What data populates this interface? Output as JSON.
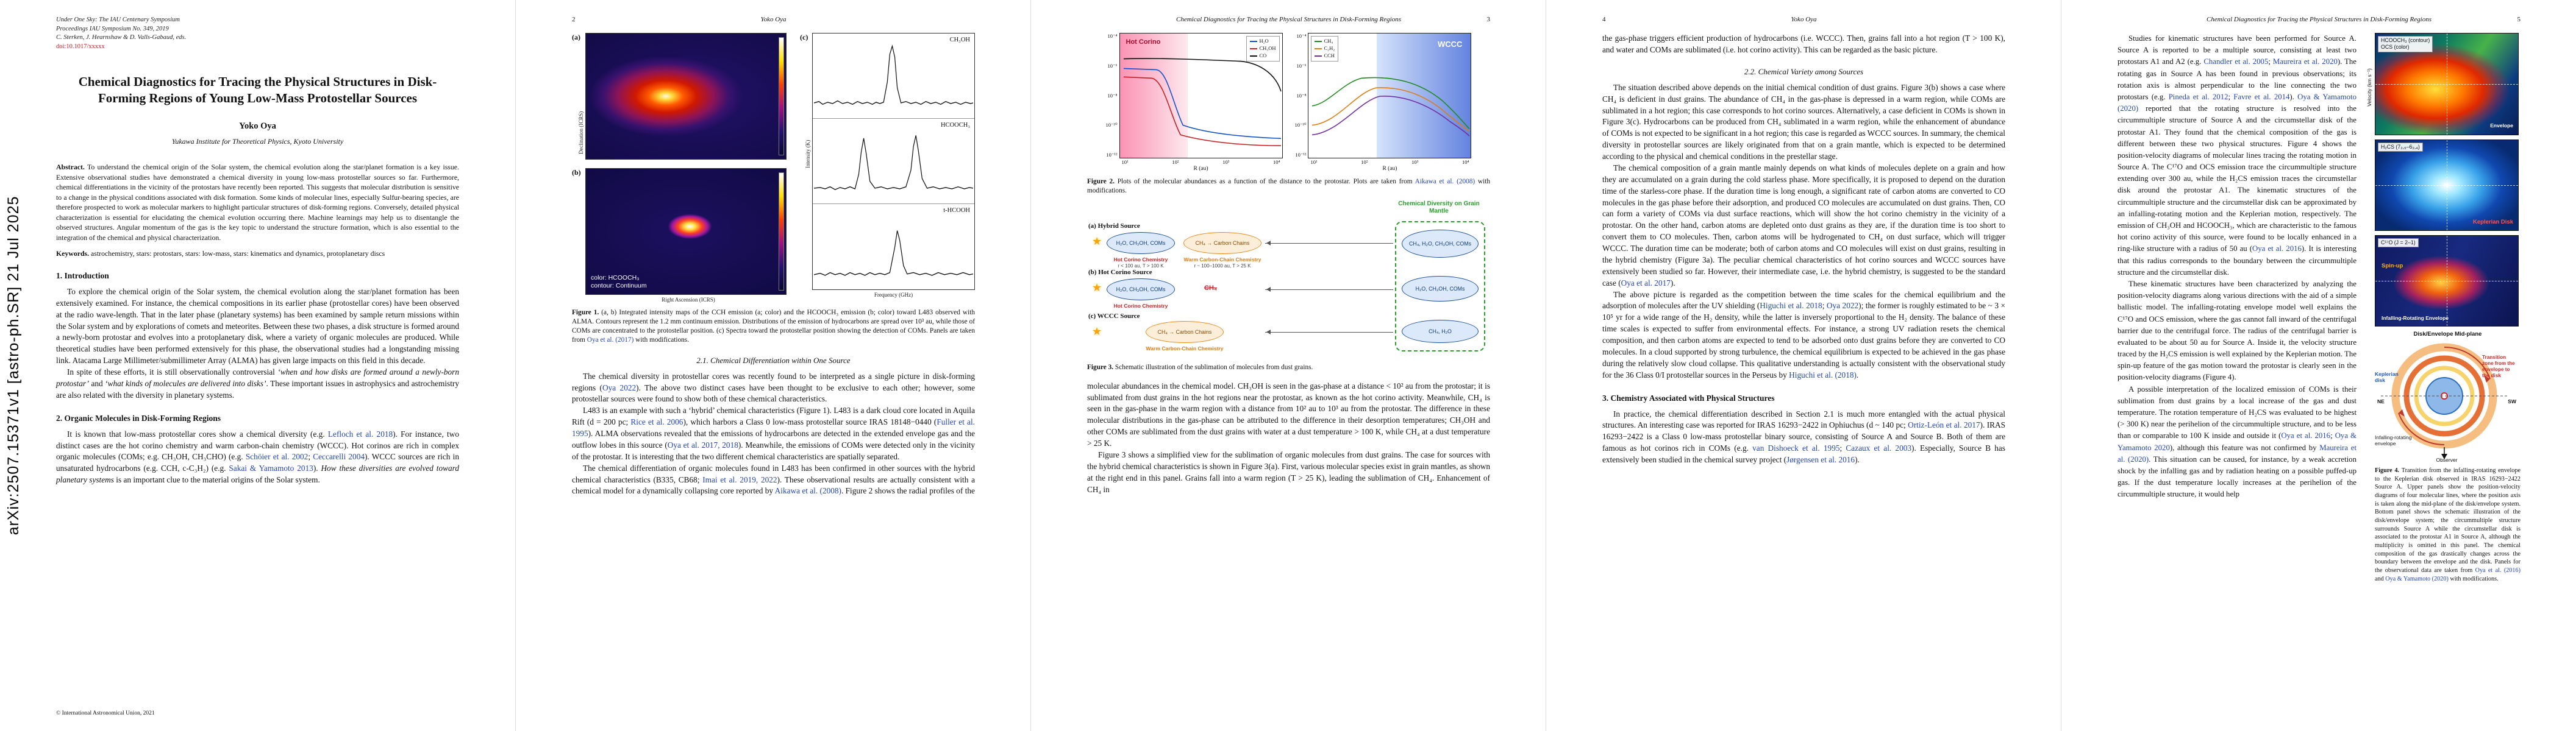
{
  "colors": {
    "citation_link": "#2244bb",
    "doi_link": "#c02020",
    "mantle_green": "#2a9d2a",
    "hot_corino_red": "#cc2222",
    "wccc_orange": "#e8891a"
  },
  "icons": {
    "protostar": "★"
  },
  "citations": [
    "Lefloch et al. 2018",
    "Schöier et al. 2002",
    "Ceccarelli 2004",
    "Sakai & Yamamoto 2013",
    "Oya 2022",
    "Rice et al. 2006",
    "Fuller et al. 1995",
    "Oya et al. 2017, 2018",
    "Oya et al. 2017",
    "Oya et al. (2017)",
    "Imai et al. 2019, 2022",
    "Aikawa et al. (2008)",
    "Aikawa et al. 2008",
    "Higuchi et al. (2018)",
    "Higuchi et al. 2018",
    "Ortiz-León et al. 2017",
    "van Dishoeck et al. 1995",
    "Cazaux et al. 2003",
    "Jørgensen et al. 2016",
    "Chandler et al. 2005",
    "Maureira et al. (2020)",
    "Maureira et al. 2020",
    "Pineda et al. 2012",
    "Favre et al. 2014",
    "Oya et al. (2016)",
    "Oya et al. 2016",
    "Oya & Yamamoto (2020)",
    "Oya & Yamamoto 2020"
  ],
  "meta": {
    "arxiv_stamp": "arXiv:2507.15371v1  [astro-ph.SR]  21 Jul 2025",
    "running_title": "Chemical Diagnostics for Tracing the Physical Structures in Disk-Forming Regions",
    "running_author": "Yoko Oya",
    "page_numbers": {
      "p2": "2",
      "p3": "3",
      "p4": "4",
      "p5": "5"
    }
  },
  "p1": {
    "header_line1": "Under One Sky: The IAU Centenary Symposium",
    "header_line2": "Proceedings IAU Symposium No. 349, 2019",
    "header_line3": "C. Sterken, J. Hearnshaw & D. Valls-Gabaud, eds.",
    "doi": "doi:10.1017/xxxxx",
    "title": "Chemical Diagnostics for Tracing the Physical Structures in Disk-Forming Regions of Young Low-Mass Protostellar Sources",
    "author": "Yoko Oya",
    "affiliation": "Yukawa Institute for Theoretical Physics, Kyoto University",
    "abstract_label": "Abstract.",
    "abstract": "To understand the chemical origin of the Solar system, the chemical evolution along the star/planet formation is a key issue. Extensive observational studies have demonstrated a chemical diversity in young low-mass protostellar sources so far. Furthermore, chemical differentiations in the vicinity of the protostars have recently been reported. This suggests that molecular distribution is sensitive to a change in the physical conditions associated with disk formation. Some kinds of molecular lines, especially Sulfur-bearing species, are therefore prospected to work as molecular markers to highlight particular structures of disk-forming regions. Conversely, detailed physical characterization is essential for elucidating the chemical evolution occurring there. Machine learnings may help us to disentangle the observed structures. Angular momentum of the gas is the key topic to understand the structure formation, which is also essential to the integration of the chemical and physical characterization.",
    "keywords_label": "Keywords.",
    "keywords": "astrochemistry, stars: protostars, stars: low-mass, stars: kinematics and dynamics, protoplanetary discs",
    "s1_heading": "1. Introduction",
    "s1_p1": "To explore the chemical origin of the Solar system, the chemical evolution along the star/planet formation has been extensively examined. For instance, the chemical compositions in its earlier phase (protostellar cores) have been observed at the radio wave-length. That in the later phase (planetary systems) has been examined by sample return missions within the Solar system and by explorations of comets and meteorites. Between these two phases, a disk structure is formed around a newly-born protostar and evolves into a protoplanetary disk, where a variety of organic molecules are produced. While theoretical studies have been performed extensively for this phase, the observational studies had a longstanding missing link. Atacama Large Millimeter/submillimeter Array (ALMA) has given large impacts on this field in this decade.",
    "s1_p2": {
      "a": "In spite of these efforts, it is still observationally controversial ",
      "b": "‘when and how disks are formed around a newly-born protostar’",
      "c": " and ",
      "d": "‘what kinds of molecules are delivered into disks’",
      "e": ". These important issues in astrophysics and astrochemistry are also related with the diversity in planetary systems."
    },
    "s2_heading": "2. Organic Molecules in Disk-Forming Regions",
    "s2_p1": {
      "a": "It is known that low-mass protostellar cores show a chemical diversity (e.g. Lefloch et al. 2018). For instance, two distinct cases are the hot corino chemistry and warm carbon-chain chemistry (WCCC). Hot corinos are rich in complex organic molecules (COMs; e.g. CH₃OH, CH₃CHO) (e.g. Schöier et al. 2002; Ceccarelli 2004). WCCC sources are rich in unsaturated hydrocarbons (e.g. CCH, c-C₃H₂) (e.g. Sakai & Yamamoto 2013). ",
      "b": "How these diversities are evolved toward planetary systems",
      "c": " is an important clue to the material origins of the Solar system."
    },
    "footer": "© International Astronomical Union, 2021"
  },
  "p2": {
    "fig1": {
      "a": "(a)",
      "b": "(b)",
      "c": "(c)",
      "b_note1": "color: HCOOCH₃",
      "b_note2": "contour: Continuum",
      "xaxis": "Right Ascension (ICRS)",
      "yaxis": "Declination (ICRS)",
      "spec1": "CH₃OH",
      "spec2": "HCOOCH₃",
      "spec3": "t-HCOOH",
      "spec_xaxis": "Frequency (GHz)",
      "spec_yaxis": "Intensity (K)",
      "cap_label": "Figure 1.",
      "caption": "(a, b) Integrated intensity maps of the CCH emission (a; color) and the HCOOCH₃ emission (b; color) toward L483 observed with ALMA. Contours represent the 1.2 mm continuum emission. Distributions of the emission of hydrocarbons are spread over 10³ au, while those of COMs are concentrated to the protostellar position. (c) Spectra toward the protostellar position showing the detection of COMs. Panels are taken from Oya et al. (2017) with modifications."
    },
    "s21_heading": "2.1. Chemical Differentiation within One Source",
    "p1": "The chemical diversity in protostellar cores was recently found to be interpreted as a single picture in disk-forming regions (Oya 2022). The above two distinct cases have been thought to be exclusive to each other; however, some protostellar sources were found to show both of these chemical characteristics.",
    "p2": "L483 is an example with such a ‘hybrid’ chemical characteristics (Figure 1). L483 is a dark cloud core located in Aquila Rift (d = 200 pc; Rice et al. 2006), which harbors a Class 0 low-mass protostellar source IRAS 18148−0440 (Fuller et al. 1995). ALMA observations revealed that the emissions of hydrocarbons are detected in the extended envelope gas and the outflow lobes in this source (Oya et al. 2017, 2018). Meanwhile, the emissions of COMs were detected only in the vicinity of the protostar. It is interesting that the two different chemical characteristics are spatially separated.",
    "p3": "The chemical differentiation of organic molecules found in L483 has been confirmed in other sources with the hybrid chemical characteristics (B335, CB68; Imai et al. 2019, 2022). These observational results are actually consistent with a chemical model for a dynamically collapsing core reported by Aikawa et al. (2008). Figure 2 shows the radial profiles of the"
  },
  "p3": {
    "fig2": {
      "yticks": [
        "10⁻⁴",
        "10⁻⁶",
        "10⁻⁸",
        "10⁻¹⁰",
        "10⁻¹²"
      ],
      "xticks": [
        "10¹",
        "10²",
        "10³",
        "10⁴"
      ],
      "ylabel": "n(i) / n(H₂)",
      "xlabel": "R (au)",
      "legend_left": [
        "H₂O",
        "CH₃OH",
        "CO"
      ],
      "legend_right": [
        "CH₄",
        "C₂H₂",
        "CCH"
      ],
      "region_hot": "Hot Corino",
      "region_wccc": "WCCC",
      "cap_label": "Figure 2.",
      "caption": "Plots of the molecular abundances as a function of the distance to the protostar. Plots are taken from Aikawa et al. (2008) with modifications."
    },
    "fig3": {
      "row_a": "(a) Hybrid Source",
      "row_b": "(b) Hot Corino Source",
      "row_c": "(c) WCCC Source",
      "mantle_title": "Chemical Diversity on Grain Mantle",
      "coms_oval": "H₂O, CH₃OH, COMs",
      "ch4_chain": "CH₄ → Carbon Chains",
      "hot_corino": "Hot Corino Chemistry",
      "wccc": "Warm Carbon-Chain Chemistry",
      "zone_hot": "r < 100 au,  T > 100 K",
      "zone_warm": "r ~ 100–1000 au,  T > 25 K",
      "mantle_a": "CH₄, H₂O, CH₃OH, COMs",
      "mantle_b": "H₂O, CH₃OH, COMs",
      "mantle_c": "CH₄, H₂O",
      "ch4_crossed": "CH₄",
      "cap_label": "Figure 3.",
      "caption": "Schematic illustration of the sublimation of molecules from dust grains."
    },
    "p1": "molecular abundances in the chemical model. CH₃OH is seen in the gas-phase at a distance < 10² au from the protostar; it is sublimated from dust grains in the hot regions near the protostar, as known as the hot corino activity. Meanwhile, CH₄ is seen in the gas-phase in the warm region with a distance from 10² au to 10³ au from the protostar. The difference in these molecular distributions in the gas-phase can be attributed to the difference in their desorption temperatures; CH₃OH and other COMs are sublimated from the dust grains with water at a dust temperature > 100 K, while CH₄ at a dust temperature > 25 K.",
    "p2": "Figure 3 shows a simplified view for the sublimation of organic molecules from dust grains. The case for sources with the hybrid chemical characteristics is shown in Figure 3(a). First, various molecular species exist in grain mantles, as shown at the right end in this panel. Grains fall into a warm region (T > 25 K), leading the sublimation of CH₄. Enhancement of CH₄ in"
  },
  "p4": {
    "cont": "the gas-phase triggers efficient production of hydrocarbons (i.e. WCCC). Then, grains fall into a hot region (T > 100 K), and water and COMs are sublimated (i.e. hot corino activity). This can be regarded as the basic picture.",
    "s22_heading": "2.2. Chemical Variety among Sources",
    "p1": "The situation described above depends on the initial chemical condition of dust grains. Figure 3(b) shows a case where CH₄ is deficient in dust grains. The abundance of CH₄ in the gas-phase is depressed in a warm region, while COMs are sublimated in a hot region; this case corresponds to hot corino sources. Alternatively, a case deficient in COMs is shown in Figure 3(c). Hydrocarbons can be produced from CH₄ sublimated in a warm region, while the enhancement of abundance of COMs is not expected to be significant in a hot region; this case is regarded as WCCC sources. In summary, the chemical diversity in protostellar sources are likely originated from that on a grain mantle, which is expected to be determined according to the physical and chemical conditions in the prestellar stage.",
    "p2": "The chemical composition of a grain mantle mainly depends on what kinds of molecules deplete on a grain and how they are accumulated on a grain during the cold starless phase. More specifically, it is proposed to depend on the duration time of the starless-core phase. If the duration time is long enough, a significant rate of carbon atoms are converted to CO molecules in the gas phase before their adsorption, and produced CO molecules are accumulated on dust grains. Then, CO can form a variety of COMs via dust surface reactions, which will show the hot corino chemistry in the vicinity of a protostar. On the other hand, carbon atoms are depleted onto dust grains as they are, if the duration time is too short to convert them to CO molecules. Then, carbon atoms will be hydrogenated to CH₄ on dust surface, which will trigger WCCC. The duration time can be moderate; both of carbon atoms and CO molecules will exist on dust grains, resulting in the hybrid chemistry (Figure 3a). The peculiar chemical characteristics of hot corino sources and WCCC sources have extensively been studied so far. However, their intermediate case, i.e. the hybrid chemistry, is suggested to be the standard case (Oya et al. 2017).",
    "p3": "The above picture is regarded as the competition between the time scales for the chemical equilibrium and the adsorption of molecules after the UV shielding (Higuchi et al. 2018; Oya 2022); the former is roughly estimated to be ~ 3 × 10⁵ yr for a wide range of the H₂ density, while the latter is inversely proportional to the H₂ density. The balance of these time scales is expected to suffer from environmental effects. For instance, a strong UV radiation resets the chemical composition, and then carbon atoms are expected to tend to be adsorbed onto dust grains before they are converted to CO molecules. In a cloud supported by strong turbulence, the chemical equilibrium is expected to be achieved in the gas phase during the relatively slow cloud collapse. This qualitative understanding is actually consistent with the observational study for the 36 Class 0/I protostellar sources in the Perseus by Higuchi et al. (2018).",
    "s3_heading": "3. Chemistry Associated with Physical Structures",
    "p4": "In practice, the chemical differentiation described in Section 2.1 is much more entangled with the actual physical structures. An interesting case was reported for IRAS 16293−2422 in Ophiuchus (d ~ 140 pc; Ortiz-León et al. 2017). IRAS 16293−2422 is a Class 0 low-mass protostellar binary source, consisting of Source A and Source B. Both of them are famous as hot corinos rich in COMs (e.g. van Dishoeck et al. 1995; Cazaux et al. 2003). Especially, Source B has extensively been studied in the chemical survey project (Jørgensen et al. 2016)."
  },
  "p5": {
    "p1": "Studies for kinematic structures have been performed for Source A. Source A is reported to be a multiple source, consisting at least two protostars A1 and A2 (e.g. Chandler et al. 2005; Maureira et al. 2020). The rotating gas in Source A has been found in previous observations; its rotation axis is almost perpendicular to the line connecting the two protostars (e.g. Pineda et al. 2012; Favre et al. 2014). Oya & Yamamoto (2020) reported that the rotating structure is resolved into the circummultiple structure of Source A and the circumstellar disk of the protostar A1. They found that the chemical composition of the gas is different between these two physical structures. Figure 4 shows the position-velocity diagrams of molecular lines tracing the rotating motion in Source A. The C¹⁷O and OCS emission trace the circummultiple structure extending over 300 au, while the H₂CS emission traces the circumstellar disk around the protostar A1. The kinematic structures of the circummultiple structure and the circumstellar disk can be approximated by an infalling-rotating motion and the Keplerian motion, respectively. The emission of CH₃OH and HCOOCH₃, which are characteristic to the famous hot corino activity of this source, were found to be locally enhanced in a ring-like structure with a radius of 50 au (Oya et al. 2016). It is interesting that this radius corresponds to the boundary between the circummultiple structure and the circumstellar disk.",
    "p2": "These kinematic structures have been characterized by analyzing the position-velocity diagrams along various directions with the aid of a simple ballistic model. The infalling-rotating envelope model well explains the C¹⁷O and OCS emission, where the gas cannot fall inward of the centrifugal barrier due to the centrifugal force. The radius of the centrifugal barrier is evaluated to be about 50 au for Source A. Inside it, the velocity structure traced by the H₂CS emission is well explained by the Keplerian motion. The spin-up feature of the gas motion toward the protostar is clearly seen in the position-velocity diagrams (Figure 4).",
    "p3": "A possible interpretation of the localized emission of COMs is their sublimation from dust grains by a local increase of the gas and dust temperature. The rotation temperature of H₂CS was evaluated to be highest (> 300 K) near the perihelion of the circummultiple structure, and to be less than or comparable to 100 K inside and outside it (Oya et al. 2016; Oya & Yamamoto 2020), although this feature was not confirmed by Maureira et al. (2020). This situation can be caused, for instance, by a weak accretion shock by the infalling gas and by radiation heating on a possible puffed-up gas. If the dust temperature locally increases at the perihelion of the circummultiple structure, it would help",
    "fig4": {
      "vel_axis": "Velocity (km s⁻¹)",
      "panel1_line1": "HCOOCH₃ (contour)",
      "panel1_line2": "OCS (color)",
      "panel1_env": "Envelope",
      "panel2_label": "H₂CS (7₂,₅–6₂,₄)",
      "panel2_disk": "Keplerian Disk",
      "panel3_label": "C¹⁷O (J = 2–1)",
      "panel3_spinup": "Spin-up",
      "panel3_env": "Infalling-Rotating Envelope",
      "midplane": "Disk/Envelope Mid-plane",
      "kep_disk": "Keplerian disk",
      "transition": "Transition zone from the envelope to the disk",
      "inf_env": "Infalling-rotating envelope",
      "observer": "Observer",
      "ne": "NE",
      "sw": "SW",
      "cap_label": "Figure 4.",
      "caption": "Transition from the infalling-rotating envelope to the Keplerian disk observed in IRAS 16293−2422 Source A. Upper panels show the position-velocity diagrams of four molecular lines, where the position axis is taken along the mid-plane of the disk/envelope system. Bottom panel shows the schematic illustration of the disk/envelope system; the circummultiple structure surrounds Source A while the circumstellar disk is associated to the protostar A1 in Source A, although the multiplicity is omitted in this panel. The chemical composition of the gas drastically changes across the boundary between the envelope and the disk. Panels for the observational data are taken from Oya et al. (2016) and Oya & Yamamoto (2020) with modifications."
    }
  }
}
